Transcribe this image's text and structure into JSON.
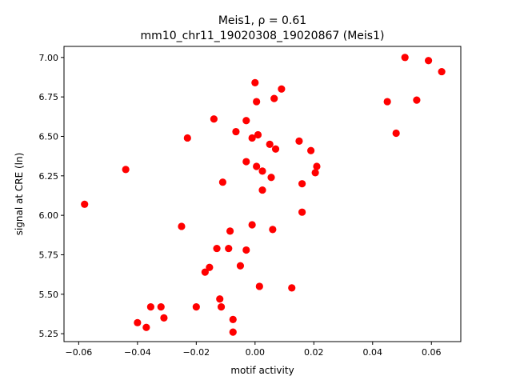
{
  "chart_data": {
    "type": "scatter",
    "title": "Meis1, ρ = 0.61",
    "subtitle": "mm10_chr11_19020308_19020867 (Meis1)",
    "xlabel": "motif activity",
    "ylabel": "signal at CRE (ln)",
    "xlim": [
      -0.065,
      0.07
    ],
    "ylim": [
      5.2,
      7.07
    ],
    "xticks": [
      -0.06,
      -0.04,
      -0.02,
      0.0,
      0.02,
      0.04,
      0.06
    ],
    "xtick_labels": [
      "−0.06",
      "−0.04",
      "−0.02",
      "0.00",
      "0.02",
      "0.04",
      "0.06"
    ],
    "yticks": [
      5.25,
      5.5,
      5.75,
      6.0,
      6.25,
      6.5,
      6.75,
      7.0
    ],
    "ytick_labels": [
      "5.25",
      "5.50",
      "5.75",
      "6.00",
      "6.25",
      "6.50",
      "6.75",
      "7.00"
    ],
    "grid": false,
    "marker_color": "#ff0000",
    "points": [
      {
        "x": -0.058,
        "y": 6.07
      },
      {
        "x": -0.044,
        "y": 6.29
      },
      {
        "x": -0.04,
        "y": 5.32
      },
      {
        "x": -0.037,
        "y": 5.29
      },
      {
        "x": -0.0355,
        "y": 5.42
      },
      {
        "x": -0.032,
        "y": 5.42
      },
      {
        "x": -0.031,
        "y": 5.35
      },
      {
        "x": -0.025,
        "y": 5.93
      },
      {
        "x": -0.023,
        "y": 6.49
      },
      {
        "x": -0.02,
        "y": 5.42
      },
      {
        "x": -0.017,
        "y": 5.64
      },
      {
        "x": -0.0155,
        "y": 5.67
      },
      {
        "x": -0.014,
        "y": 6.61
      },
      {
        "x": -0.013,
        "y": 5.79
      },
      {
        "x": -0.012,
        "y": 5.47
      },
      {
        "x": -0.0115,
        "y": 5.42
      },
      {
        "x": -0.011,
        "y": 6.21
      },
      {
        "x": -0.009,
        "y": 5.79
      },
      {
        "x": -0.0085,
        "y": 5.9
      },
      {
        "x": -0.0075,
        "y": 5.34
      },
      {
        "x": -0.0075,
        "y": 5.26
      },
      {
        "x": -0.0065,
        "y": 6.53
      },
      {
        "x": -0.005,
        "y": 5.68
      },
      {
        "x": -0.003,
        "y": 6.6
      },
      {
        "x": -0.003,
        "y": 6.34
      },
      {
        "x": -0.003,
        "y": 5.78
      },
      {
        "x": -0.001,
        "y": 6.49
      },
      {
        "x": -0.001,
        "y": 5.94
      },
      {
        "x": 0.0,
        "y": 6.84
      },
      {
        "x": 0.0005,
        "y": 6.72
      },
      {
        "x": 0.0005,
        "y": 6.31
      },
      {
        "x": 0.001,
        "y": 6.51
      },
      {
        "x": 0.0015,
        "y": 5.55
      },
      {
        "x": 0.0025,
        "y": 6.28
      },
      {
        "x": 0.0025,
        "y": 6.16
      },
      {
        "x": 0.005,
        "y": 6.45
      },
      {
        "x": 0.0055,
        "y": 6.24
      },
      {
        "x": 0.006,
        "y": 5.91
      },
      {
        "x": 0.0065,
        "y": 6.74
      },
      {
        "x": 0.007,
        "y": 6.42
      },
      {
        "x": 0.009,
        "y": 6.8
      },
      {
        "x": 0.0125,
        "y": 5.54
      },
      {
        "x": 0.015,
        "y": 6.47
      },
      {
        "x": 0.016,
        "y": 6.2
      },
      {
        "x": 0.016,
        "y": 6.02
      },
      {
        "x": 0.019,
        "y": 6.41
      },
      {
        "x": 0.0205,
        "y": 6.27
      },
      {
        "x": 0.021,
        "y": 6.31
      },
      {
        "x": 0.045,
        "y": 6.72
      },
      {
        "x": 0.048,
        "y": 6.52
      },
      {
        "x": 0.051,
        "y": 7.0
      },
      {
        "x": 0.055,
        "y": 6.73
      },
      {
        "x": 0.059,
        "y": 6.98
      },
      {
        "x": 0.0635,
        "y": 6.91
      }
    ]
  }
}
